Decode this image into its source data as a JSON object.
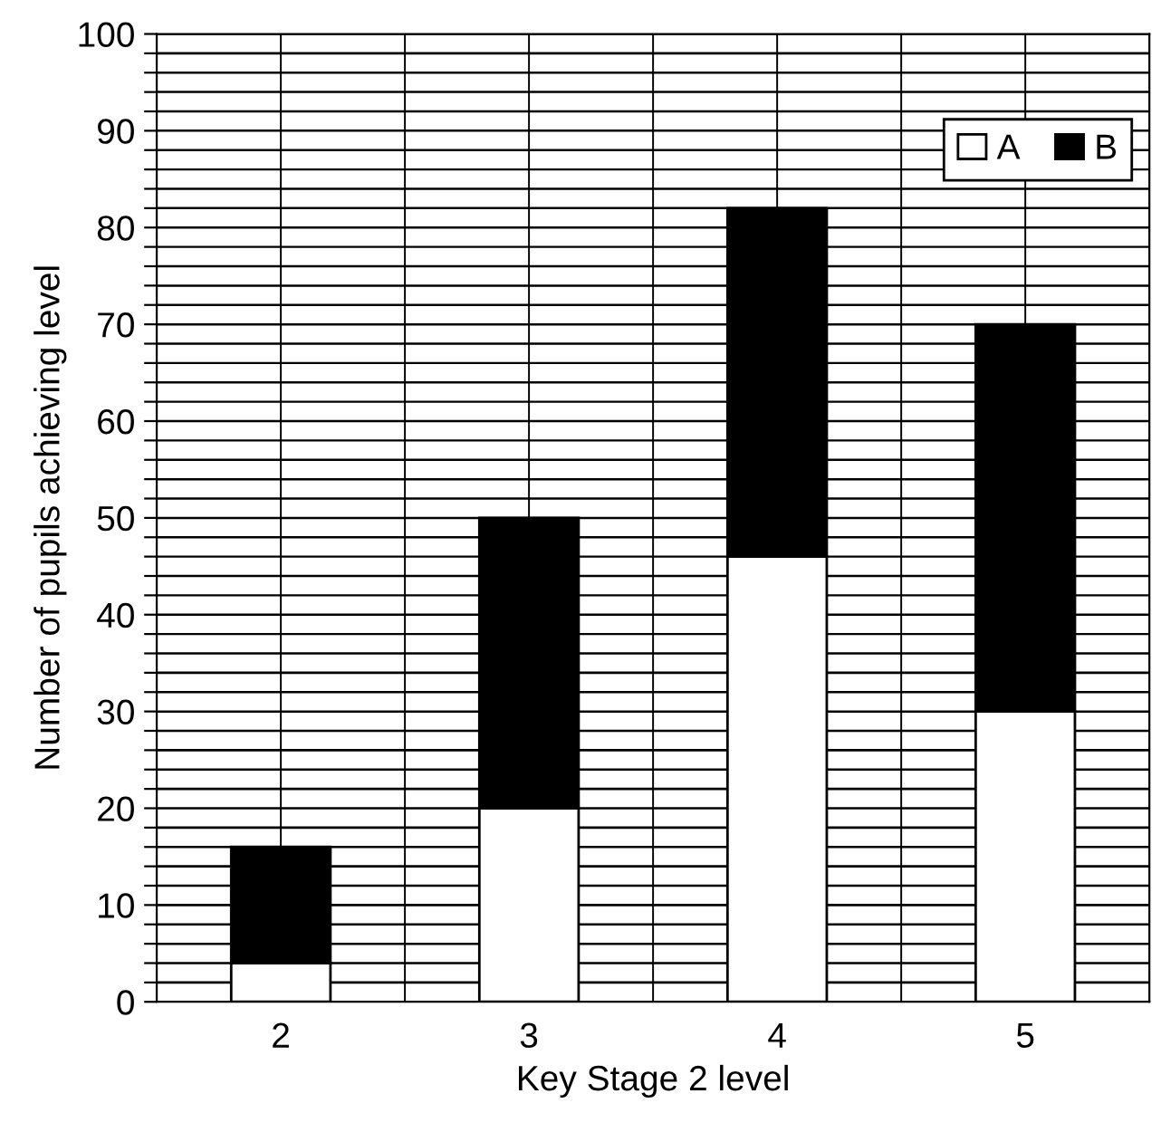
{
  "chart_data": {
    "type": "bar",
    "stacked": true,
    "xlabel": "Key Stage 2 level",
    "ylabel": "Number of pupils achieving level",
    "categories": [
      "2",
      "3",
      "4",
      "5"
    ],
    "series": [
      {
        "name": "A",
        "color": "#ffffff",
        "values": [
          4,
          20,
          46,
          30
        ]
      },
      {
        "name": "B",
        "color": "#000000",
        "values": [
          12,
          30,
          36,
          40
        ]
      }
    ],
    "ylim": [
      0,
      100
    ],
    "yticks": [
      0,
      {
        "value": 2,
        "label": null
      },
      {
        "value": 4,
        "label": null
      },
      {
        "value": 6,
        "label": null
      },
      {
        "value": 8,
        "label": null
      },
      10,
      {
        "value": 12,
        "label": null
      },
      {
        "value": 14,
        "label": null
      },
      {
        "value": 16,
        "label": null
      },
      {
        "value": 18,
        "label": null
      },
      20,
      {
        "value": 22,
        "label": null
      },
      {
        "value": 24,
        "label": null
      },
      {
        "value": 26,
        "label": null
      },
      {
        "value": 28,
        "label": null
      },
      30,
      {
        "value": 32,
        "label": null
      },
      {
        "value": 34,
        "label": null
      },
      {
        "value": 36,
        "label": null
      },
      {
        "value": 38,
        "label": null
      },
      40,
      {
        "value": 42,
        "label": null
      },
      {
        "value": 44,
        "label": null
      },
      {
        "value": 46,
        "label": null
      },
      {
        "value": 48,
        "label": null
      },
      50,
      {
        "value": 52,
        "label": null
      },
      {
        "value": 54,
        "label": null
      },
      {
        "value": 56,
        "label": null
      },
      {
        "value": 58,
        "label": null
      },
      60,
      {
        "value": 62,
        "label": null
      },
      {
        "value": 64,
        "label": null
      },
      {
        "value": 66,
        "label": null
      },
      {
        "value": 68,
        "label": null
      },
      70,
      {
        "value": 72,
        "label": null
      },
      {
        "value": 74,
        "label": null
      },
      {
        "value": 76,
        "label": null
      },
      {
        "value": 78,
        "label": null
      },
      80,
      {
        "value": 82,
        "label": null
      },
      {
        "value": 84,
        "label": null
      },
      {
        "value": 86,
        "label": null
      },
      {
        "value": 88,
        "label": null
      },
      90,
      {
        "value": 92,
        "label": null
      },
      {
        "value": 94,
        "label": null
      },
      {
        "value": 96,
        "label": null
      },
      {
        "value": 98,
        "label": null
      },
      100
    ],
    "grid": true,
    "legend": "top right"
  }
}
